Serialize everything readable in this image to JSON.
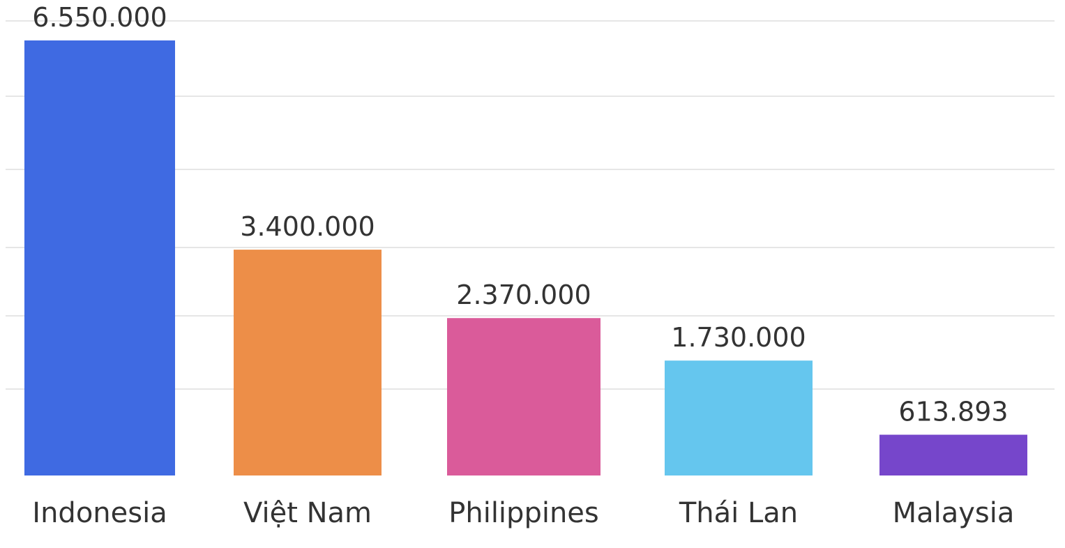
{
  "chart_data": {
    "type": "bar",
    "categories": [
      "Indonesia",
      "Việt Nam",
      "Philippines",
      "Thái Lan",
      "Malaysia"
    ],
    "values": [
      6550000,
      3400000,
      2370000,
      1730000,
      613893
    ],
    "value_labels": [
      "6.550.000",
      "3.400.000",
      "2.370.000",
      "1.730.000",
      "613.893"
    ],
    "colors": [
      "#3f6ae2",
      "#ed8e48",
      "#da5b9a",
      "#65c6ee",
      "#7646cb"
    ],
    "grid": true,
    "legend": "none"
  }
}
